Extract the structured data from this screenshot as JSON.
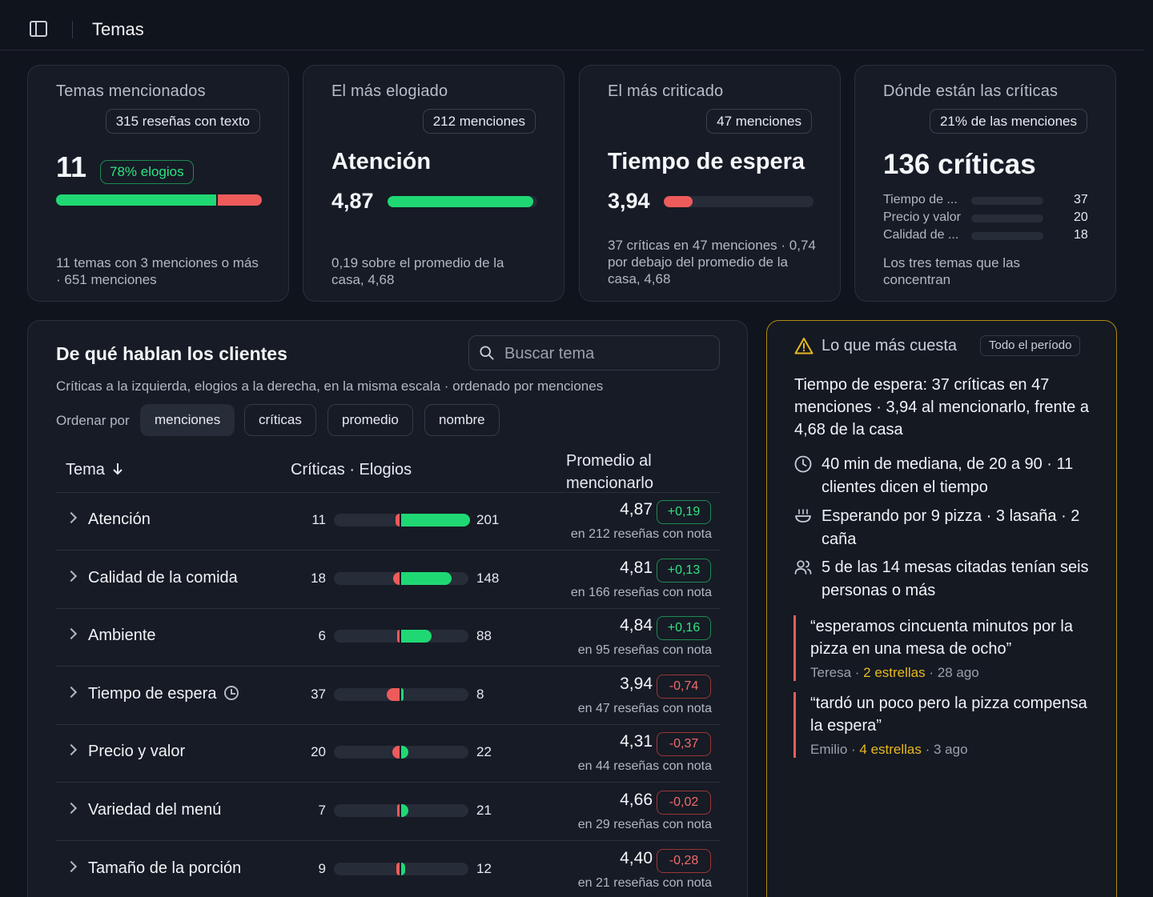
{
  "header": {
    "title": "Temas"
  },
  "cards": {
    "mentioned": {
      "label": "Temas mencionados",
      "pill": "315 reseñas con texto",
      "value": "11",
      "badge": "78% elogios",
      "praise_fraction": 0.78,
      "footer": "11 temas con 3 menciones o más · 651 menciones"
    },
    "most_praised": {
      "label": "El más elogiado",
      "pill": "212 menciones",
      "topic": "Atención",
      "score": "4,87",
      "score_fraction": 0.974,
      "footer": "0,19 sobre el promedio de la casa, 4,68"
    },
    "most_criticized": {
      "label": "El más criticado",
      "pill": "47 menciones",
      "topic": "Tiempo de espera",
      "score": "3,94",
      "critic_fraction": 0.19,
      "footer": "37 críticas en 47 menciones · 0,74 por debajo del promedio de la casa, 4,68"
    },
    "where_criticism": {
      "label": "Dónde están las críticas",
      "pill": "21% de las menciones",
      "value": "136 críticas",
      "rows": [
        {
          "label": "Tiempo de ...",
          "value": "37",
          "fraction": 0.37
        },
        {
          "label": "Precio y valor",
          "value": "20",
          "fraction": 0.2
        },
        {
          "label": "Calidad de ...",
          "value": "18",
          "fraction": 0.18
        }
      ],
      "footer": "Los tres temas que las concentran"
    }
  },
  "topics_panel": {
    "title": "De qué hablan los clientes",
    "search_placeholder": "Buscar tema",
    "subtitle": "Críticas a la izquierda, elogios a la derecha, en la misma escala · ordenado por menciones",
    "sort_label": "Ordenar por",
    "sort_options": [
      "menciones",
      "críticas",
      "promedio",
      "nombre"
    ],
    "sort_active": "menciones",
    "columns": {
      "topic": "Tema",
      "topic_sort_icon": "arrow-down-icon",
      "critics_praise": "Críticas · Elogios",
      "avg": "Promedio al mencionarlo"
    },
    "scale_max": 201,
    "rows": [
      {
        "name": "Atención",
        "critics": 11,
        "praise": 201,
        "avg": "4,87",
        "delta": "+0,19",
        "delta_sign": "pos",
        "note": "en 212 reseñas con nota"
      },
      {
        "name": "Calidad de la comida",
        "critics": 18,
        "praise": 148,
        "avg": "4,81",
        "delta": "+0,13",
        "delta_sign": "pos",
        "note": "en 166 reseñas con nota"
      },
      {
        "name": "Ambiente",
        "critics": 6,
        "praise": 88,
        "avg": "4,84",
        "delta": "+0,16",
        "delta_sign": "pos",
        "note": "en 95 reseñas con nota"
      },
      {
        "name": "Tiempo de espera",
        "critics": 37,
        "praise": 8,
        "avg": "3,94",
        "delta": "-0,74",
        "delta_sign": "neg",
        "note": "en 47 reseñas con nota",
        "icon": "clock-icon"
      },
      {
        "name": "Precio y valor",
        "critics": 20,
        "praise": 22,
        "avg": "4,31",
        "delta": "-0,37",
        "delta_sign": "neg",
        "note": "en 44 reseñas con nota"
      },
      {
        "name": "Variedad del menú",
        "critics": 7,
        "praise": 21,
        "avg": "4,66",
        "delta": "-0,02",
        "delta_sign": "neg",
        "note": "en 29 reseñas con nota"
      },
      {
        "name": "Tamaño de la porción",
        "critics": 9,
        "praise": 12,
        "avg": "4,40",
        "delta": "-0,28",
        "delta_sign": "neg",
        "note": "en 21 reseñas con nota"
      }
    ]
  },
  "cost_panel": {
    "title": "Lo que más cuesta",
    "period": "Todo el período",
    "summary": "Tiempo de espera: 37 críticas en 47 menciones · 3,94 al mencionarlo, frente a 4,68 de la casa",
    "facts": [
      {
        "icon": "clock-icon",
        "text": "40 min de mediana, de 20 a 90 · 11 clientes dicen el tiempo"
      },
      {
        "icon": "food-bowl-icon",
        "text": "Esperando por 9 pizza · 3 lasaña · 2 caña"
      },
      {
        "icon": "people-icon",
        "text": "5 de las 14 mesas citadas tenían seis personas o más"
      }
    ],
    "quotes": [
      {
        "text": "“esperamos cincuenta minutos por la pizza en una mesa de ocho”",
        "author": "Teresa",
        "stars": "2 estrellas",
        "when": "28 ago"
      },
      {
        "text": "“tardó un poco pero la pizza compensa la espera”",
        "author": "Emilio",
        "stars": "4 estrellas",
        "when": "3 ago"
      }
    ],
    "accent": "#b08a12"
  },
  "colors": {
    "praise": "#1fd873",
    "critic": "#ee5b5b",
    "background": "#10141c"
  }
}
